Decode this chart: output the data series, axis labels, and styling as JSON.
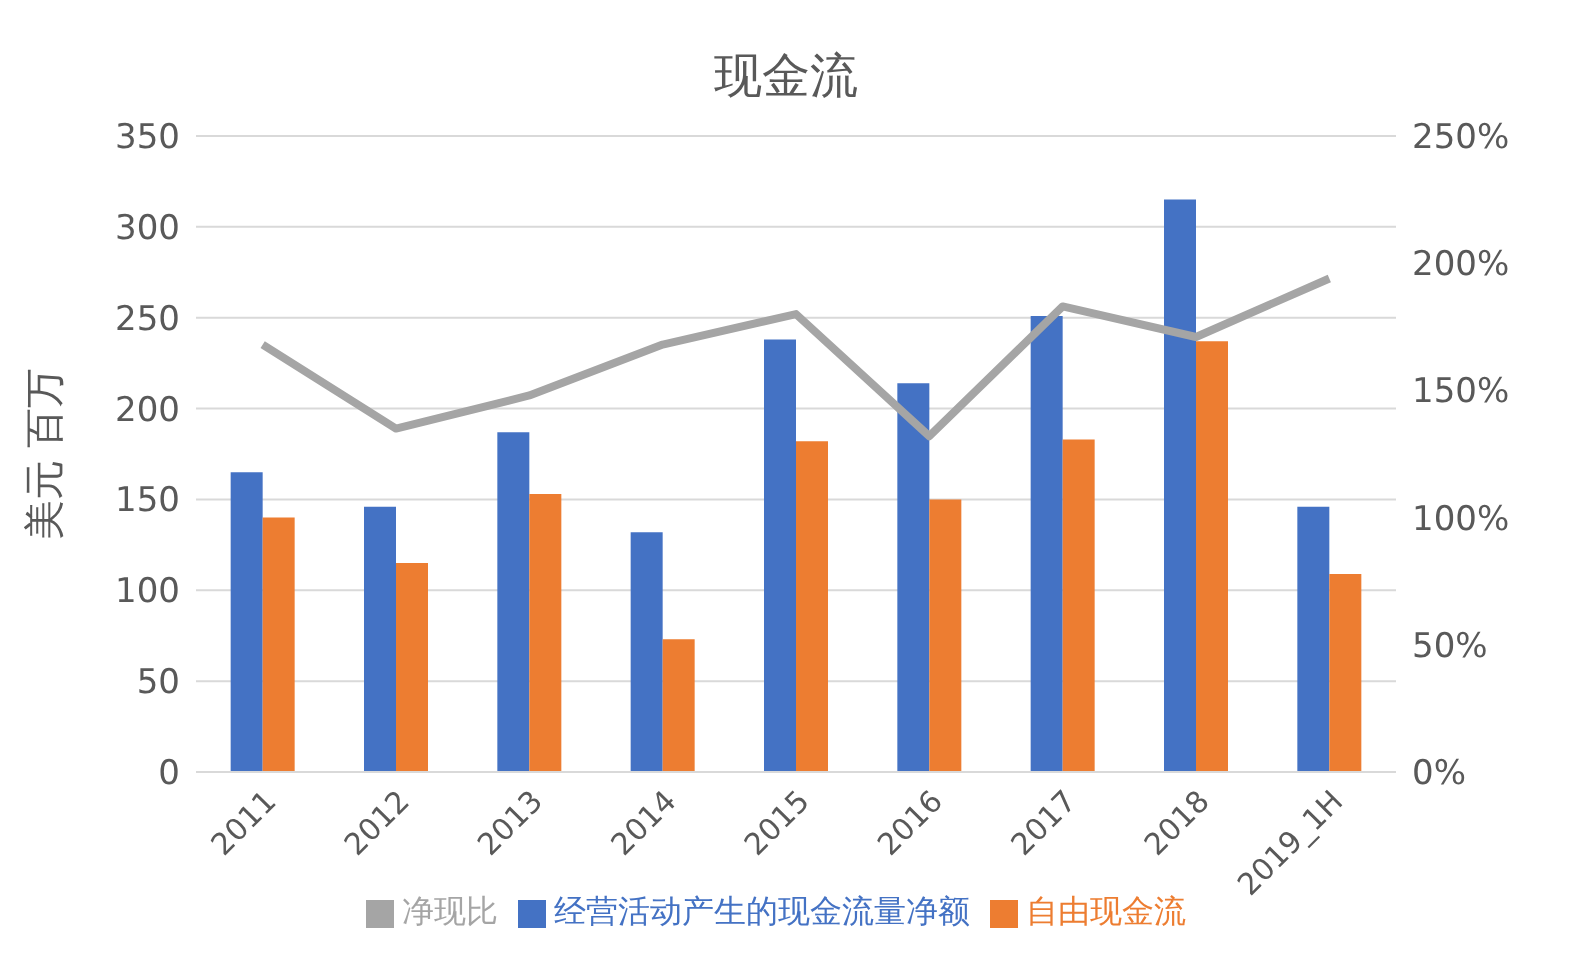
{
  "chart_data": {
    "type": "bar",
    "title": "现金流",
    "ylabel": "美元 百万",
    "categories": [
      "2011",
      "2012",
      "2013",
      "2014",
      "2015",
      "2016",
      "2017",
      "2018",
      "2019_1H"
    ],
    "series": [
      {
        "name": "经营活动产生的现金流量净额",
        "color": "#4472c4",
        "values": [
          165,
          146,
          187,
          132,
          238,
          214,
          251,
          315,
          146
        ]
      },
      {
        "name": "自由现金流",
        "color": "#ed7d31",
        "values": [
          140,
          115,
          153,
          73,
          182,
          150,
          183,
          237,
          109
        ]
      },
      {
        "name": "净现比",
        "type": "line",
        "axis": "y2",
        "color": "#a5a5a5",
        "values": [
          168,
          135,
          148,
          168,
          180,
          132,
          183,
          171,
          194
        ]
      }
    ],
    "ylim": [
      0,
      350
    ],
    "yticks": [
      0,
      50,
      100,
      150,
      200,
      250,
      300,
      350
    ],
    "y2lim": [
      0,
      250
    ],
    "y2ticks": [
      {
        "value": 0,
        "label": "0%"
      },
      {
        "value": 50,
        "label": "50%"
      },
      {
        "value": 100,
        "label": "100%"
      },
      {
        "value": 150,
        "label": "150%"
      },
      {
        "value": 200,
        "label": "200%"
      },
      {
        "value": 250,
        "label": "250%"
      }
    ],
    "grid": "y",
    "legend": "bottom",
    "marker": "none"
  }
}
